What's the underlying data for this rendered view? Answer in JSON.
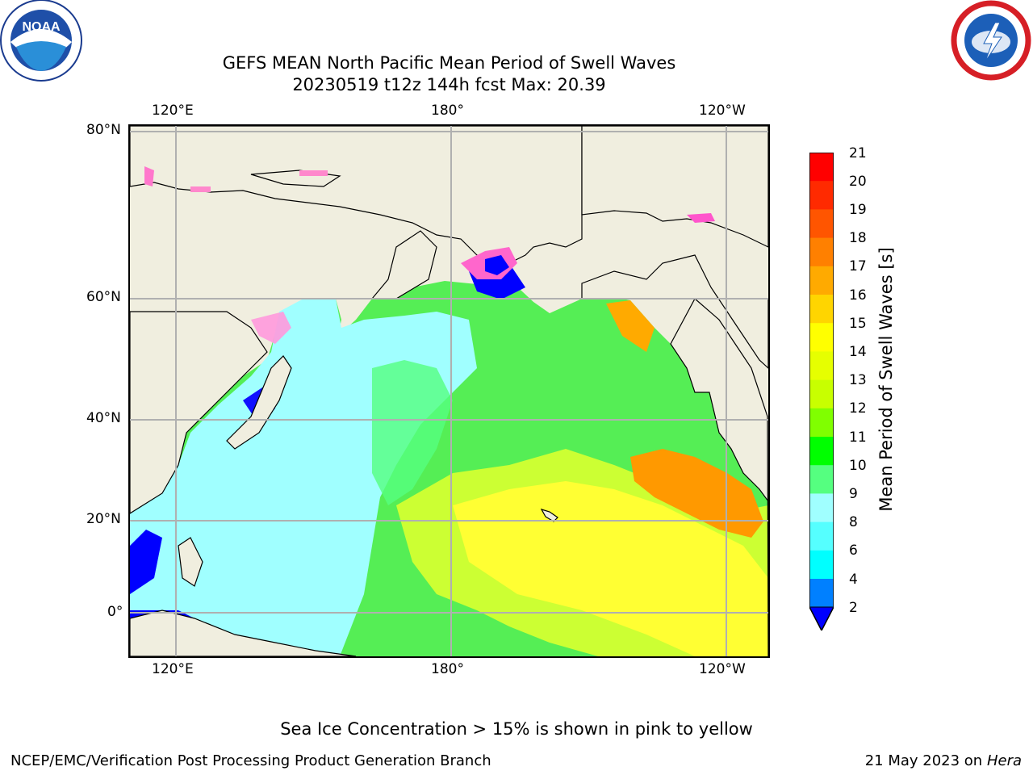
{
  "header": {
    "title_line1": "GEFS MEAN North Pacific Mean Period of Swell Waves",
    "title_line2": "20230519 t12z 144h fcst   Max: 20.39"
  },
  "logos": {
    "noaa": {
      "text": "NOAA",
      "ring_text": "NATIONAL OCEANIC AND ATMOSPHERIC ADMINISTRATION · U.S. DEPARTMENT OF COMMERCE"
    },
    "nws": {
      "ring_text": "NATIONAL WEATHER SERVICE"
    }
  },
  "map": {
    "top_lon_ticks": [
      "120°E",
      "180°",
      "120°W"
    ],
    "bottom_lon_ticks": [
      "120°E",
      "180°",
      "120°W"
    ],
    "lat_ticks": [
      "80°N",
      "60°N",
      "40°N",
      "20°N",
      "0°"
    ],
    "colors": {
      "land": "#f0eedf",
      "grid": "#b0b0b0",
      "coast": "#000000"
    }
  },
  "colorbar": {
    "title": "Mean Period of Swell Waves [s]",
    "labels": [
      "21",
      "20",
      "19",
      "18",
      "17",
      "16",
      "15",
      "14",
      "13",
      "12",
      "11",
      "10",
      "9",
      "8",
      "6",
      "4",
      "2"
    ],
    "colors": [
      "#ff0000",
      "#ff2a00",
      "#ff5500",
      "#ff8000",
      "#ffaa00",
      "#ffd500",
      "#ffff00",
      "#e6ff00",
      "#c8ff00",
      "#80ff00",
      "#00ff00",
      "#55ff80",
      "#a0ffff",
      "#55ffff",
      "#00ffff",
      "#0080ff"
    ],
    "under_color": "#0000ff"
  },
  "footer": {
    "ice_note": "Sea Ice Concentration > 15% is shown in pink to yellow",
    "credit": "NCEP/EMC/Verification Post Processing Product Generation Branch",
    "date": "21 May 2023 on",
    "machine": "Hera"
  }
}
